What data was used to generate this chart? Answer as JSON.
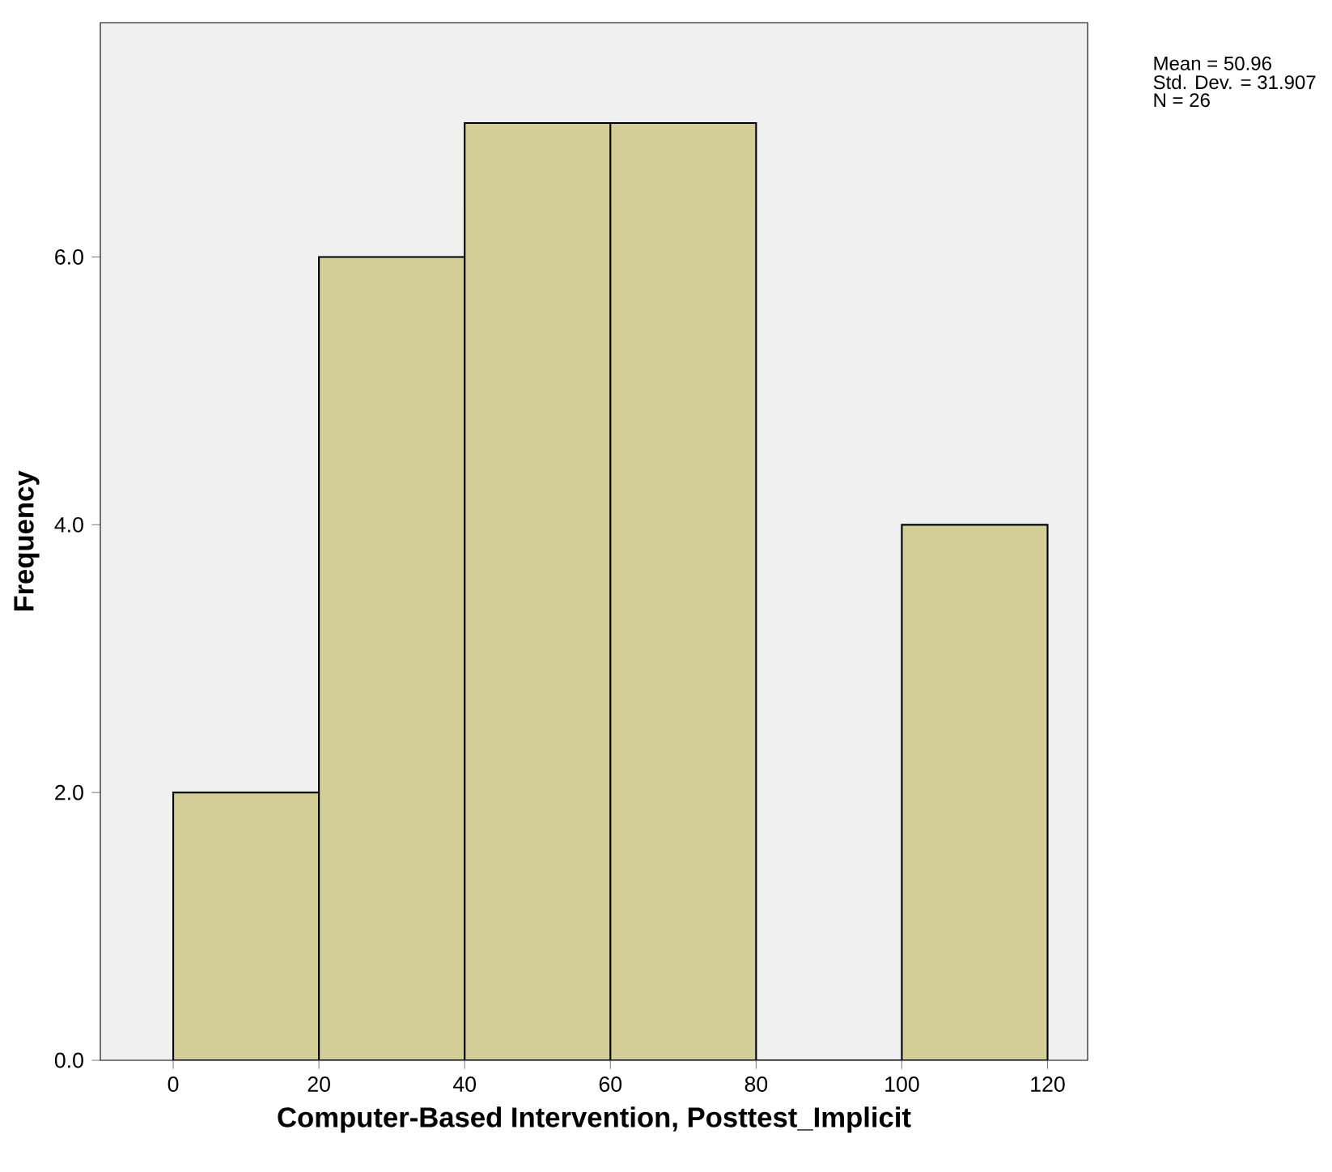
{
  "chart_data": {
    "type": "histogram",
    "xlabel": "Computer-Based Intervention, Posttest_Implicit",
    "ylabel": "Frequency",
    "bins": [
      0,
      20,
      40,
      60,
      80,
      100,
      120
    ],
    "values": [
      2,
      6,
      7,
      7,
      0,
      4
    ],
    "color": "#d3ce98",
    "xlim": [
      -10,
      125.5
    ],
    "ylim": [
      0,
      7.75
    ],
    "xticks": [
      0,
      20,
      40,
      60,
      80,
      100,
      120
    ],
    "yticks": [
      {
        "value": 0,
        "label": "0.0"
      },
      {
        "value": 2,
        "label": "2.0"
      },
      {
        "value": 4,
        "label": "4.0"
      },
      {
        "value": 6,
        "label": "6.0"
      }
    ],
    "annotations": [
      "Mean = 50.96",
      "Std. Dev. = 31.907",
      "N = 26"
    ]
  }
}
